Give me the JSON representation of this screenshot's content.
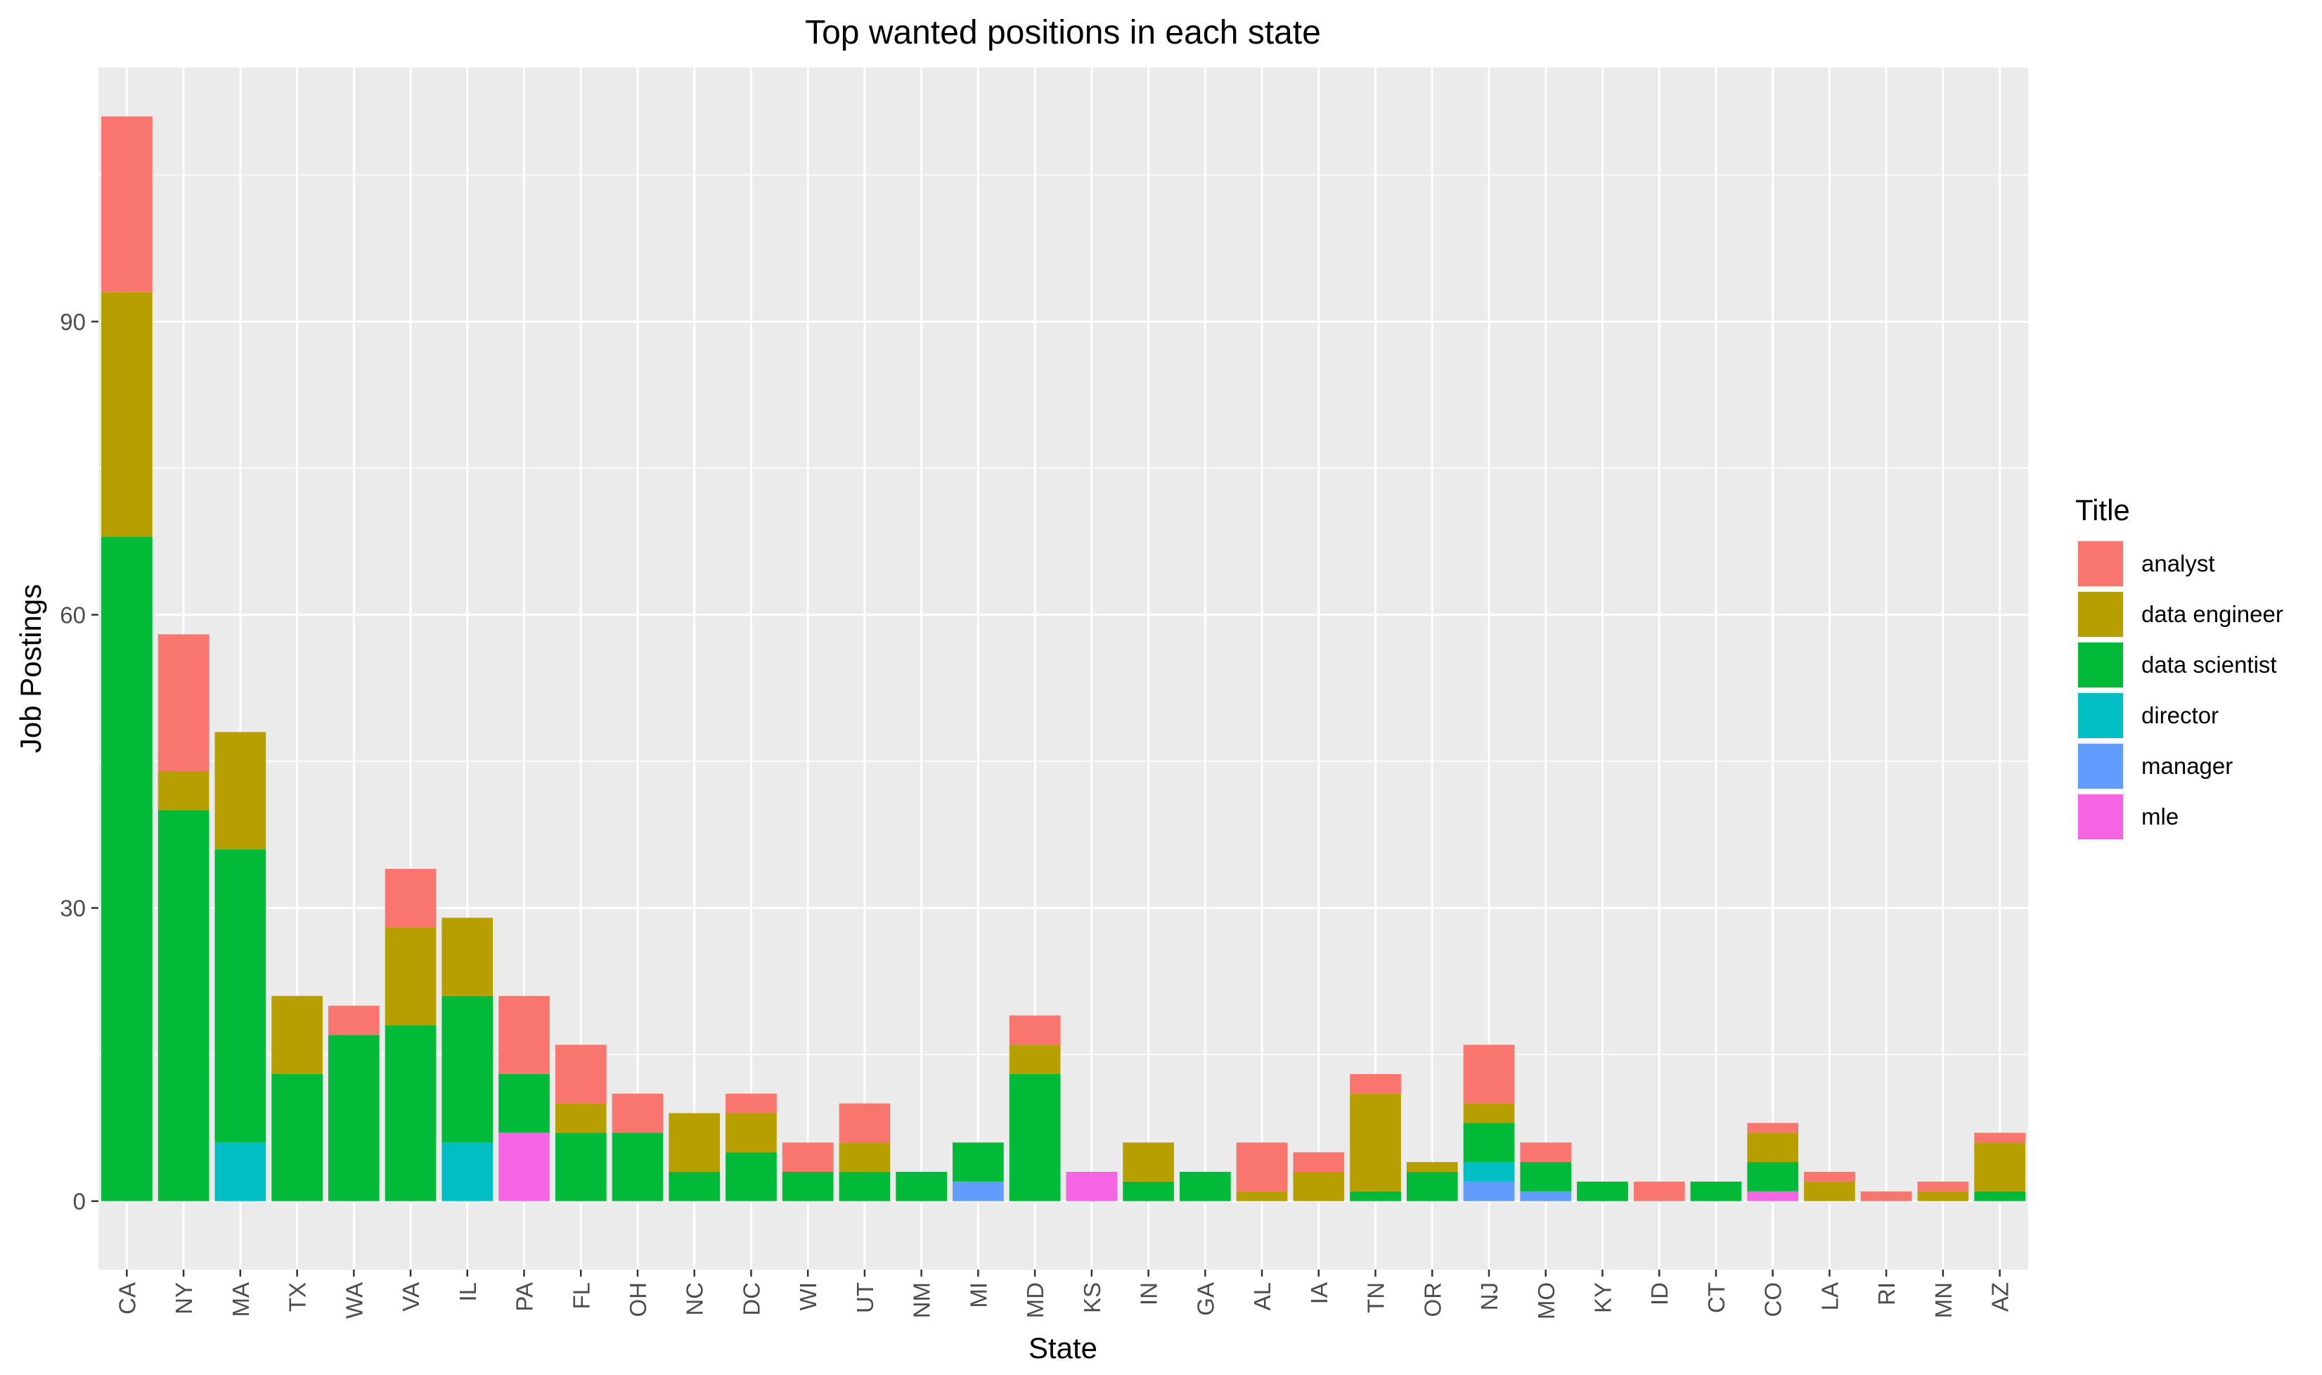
{
  "chart_data": {
    "type": "bar",
    "stacked": true,
    "title": "Top wanted positions in each state",
    "xlabel": "State",
    "ylabel": "Job Postings",
    "ylim": [
      -7,
      116
    ],
    "yticks": [
      0,
      30,
      60,
      90
    ],
    "grid": true,
    "legend_title": "Title",
    "legend_position": "right",
    "categories": [
      "CA",
      "NY",
      "MA",
      "TX",
      "WA",
      "VA",
      "IL",
      "PA",
      "FL",
      "OH",
      "NC",
      "DC",
      "WI",
      "UT",
      "NM",
      "MI",
      "MD",
      "KS",
      "IN",
      "GA",
      "AL",
      "IA",
      "TN",
      "OR",
      "NJ",
      "MO",
      "KY",
      "ID",
      "CT",
      "CO",
      "LA",
      "RI",
      "MN",
      "AZ"
    ],
    "stack_order_bottom_to_top": [
      "mle",
      "manager",
      "director",
      "data scientist",
      "data engineer",
      "analyst"
    ],
    "series": [
      {
        "name": "analyst",
        "color": "#F8766D",
        "values": [
          18,
          14,
          0,
          0,
          3,
          6,
          0,
          8,
          6,
          4,
          0,
          2,
          3,
          4,
          0,
          0,
          3,
          0,
          0,
          0,
          5,
          2,
          2,
          0,
          6,
          2,
          0,
          2,
          0,
          1,
          1,
          1,
          1,
          1
        ]
      },
      {
        "name": "data engineer",
        "color": "#B79F00",
        "values": [
          25,
          4,
          12,
          8,
          0,
          10,
          8,
          0,
          3,
          0,
          6,
          4,
          0,
          3,
          0,
          0,
          3,
          0,
          4,
          0,
          1,
          3,
          10,
          1,
          2,
          0,
          0,
          0,
          0,
          3,
          2,
          0,
          1,
          5
        ]
      },
      {
        "name": "data scientist",
        "color": "#00BA38",
        "values": [
          68,
          40,
          30,
          13,
          17,
          18,
          15,
          6,
          7,
          7,
          3,
          5,
          3,
          3,
          3,
          4,
          13,
          0,
          2,
          3,
          0,
          0,
          1,
          3,
          4,
          3,
          2,
          0,
          2,
          3,
          0,
          0,
          0,
          1
        ]
      },
      {
        "name": "director",
        "color": "#00BFC4",
        "values": [
          0,
          0,
          6,
          0,
          0,
          0,
          6,
          0,
          0,
          0,
          0,
          0,
          0,
          0,
          0,
          0,
          0,
          0,
          0,
          0,
          0,
          0,
          0,
          0,
          2,
          0,
          0,
          0,
          0,
          0,
          0,
          0,
          0,
          0
        ]
      },
      {
        "name": "manager",
        "color": "#619CFF",
        "values": [
          0,
          0,
          0,
          0,
          0,
          0,
          0,
          0,
          0,
          0,
          0,
          0,
          0,
          0,
          0,
          2,
          0,
          0,
          0,
          0,
          0,
          0,
          0,
          0,
          2,
          1,
          0,
          0,
          0,
          0,
          0,
          0,
          0,
          0
        ]
      },
      {
        "name": "mle",
        "color": "#F564E3",
        "values": [
          0,
          0,
          0,
          0,
          0,
          0,
          0,
          7,
          0,
          0,
          0,
          0,
          0,
          0,
          0,
          0,
          0,
          3,
          0,
          0,
          0,
          0,
          0,
          0,
          0,
          0,
          0,
          0,
          0,
          1,
          0,
          0,
          0,
          0
        ]
      }
    ]
  }
}
